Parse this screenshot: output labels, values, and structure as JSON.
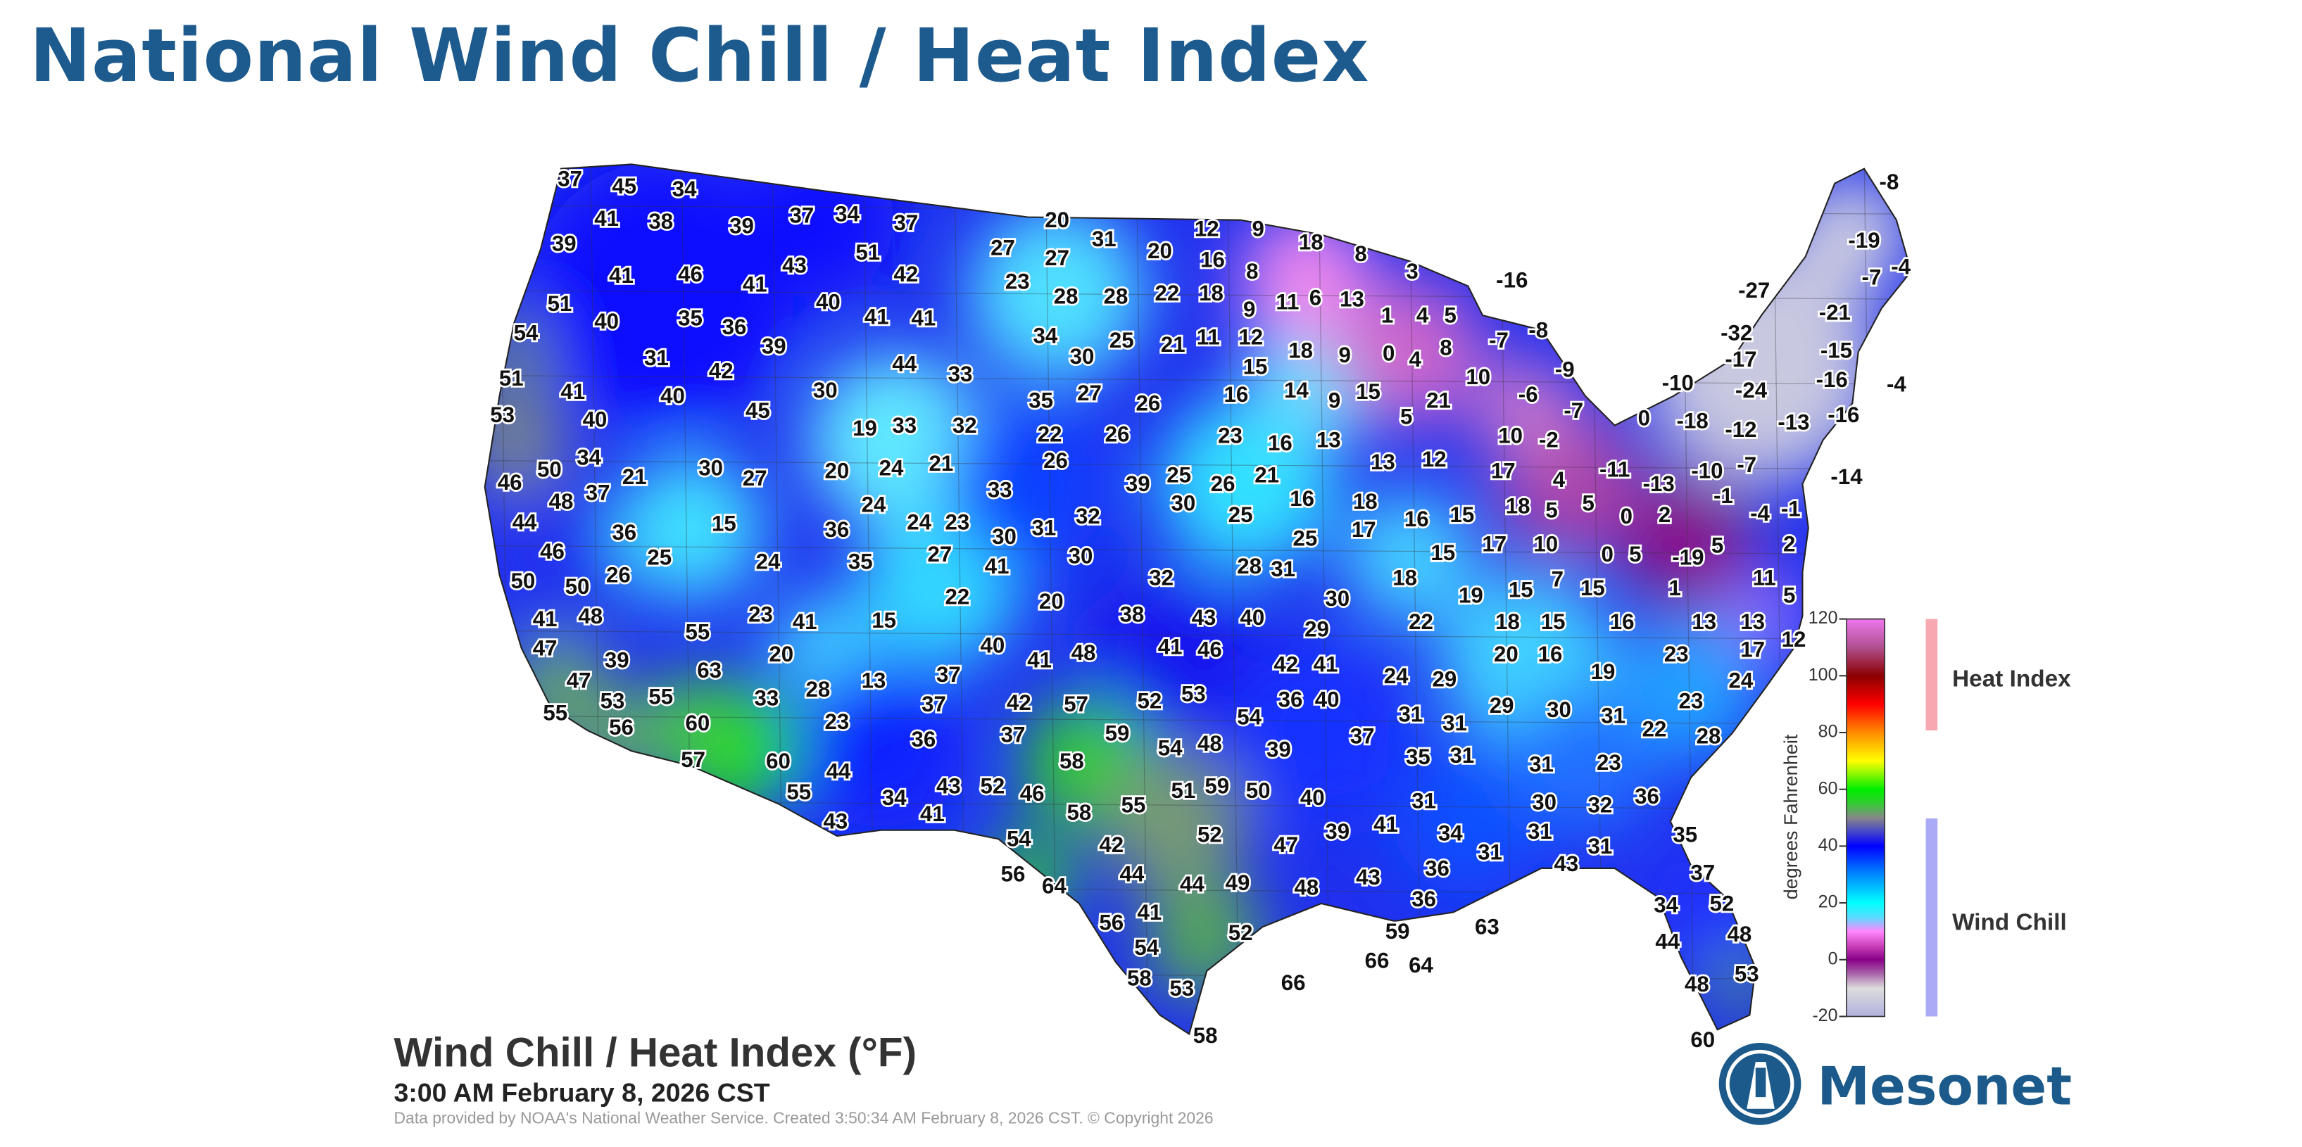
{
  "title": "National Wind Chill / Heat Index",
  "map": {
    "product_title": "Wind Chill / Heat Index (°F)",
    "valid_time": "3:00 AM February 8, 2026 CST",
    "credit": "Data provided by NOAA's National Weather Service. Created 3:50:34 AM February 8, 2026 CST. © Copyright 2026",
    "station_values": [
      37,
      45,
      34,
      41,
      38,
      39,
      37,
      34,
      37,
      27,
      20,
      31,
      20,
      12,
      9,
      18,
      8,
      39,
      41,
      46,
      41,
      43,
      51,
      42,
      23,
      27,
      16,
      8,
      3,
      -16,
      51,
      40,
      35,
      36,
      39,
      40,
      41,
      41,
      28,
      28,
      22,
      18,
      9,
      11,
      6,
      13,
      1,
      4,
      5,
      -8,
      -19,
      -7,
      -4,
      -27,
      -21,
      54,
      31,
      42,
      34,
      30,
      25,
      21,
      11,
      12,
      18,
      9,
      0,
      4,
      8,
      -7,
      -8,
      -32,
      -17,
      -15,
      51,
      41,
      40,
      45,
      30,
      44,
      33,
      35,
      27,
      26,
      15,
      16,
      14,
      9,
      15,
      21,
      10,
      -6,
      -9,
      -7,
      -10,
      -24,
      -16,
      -4,
      53,
      40,
      19,
      33,
      32,
      22,
      26,
      23,
      16,
      13,
      5,
      10,
      -2,
      0,
      -18,
      -12,
      -13,
      -16,
      34,
      50,
      21,
      30,
      27,
      20,
      24,
      21,
      26,
      39,
      25,
      26,
      21,
      13,
      12,
      17,
      -11,
      -13,
      -10,
      -7,
      -14,
      46,
      48,
      37,
      33,
      24,
      30,
      16,
      18,
      4,
      5,
      0,
      2,
      -1,
      -4,
      -1,
      44,
      36,
      15,
      36,
      24,
      23,
      30,
      31,
      32,
      25,
      17,
      16,
      15,
      18,
      5,
      46,
      25,
      24,
      35,
      27,
      41,
      30,
      28,
      31,
      25,
      15,
      17,
      10,
      0,
      5,
      -19,
      5,
      2,
      50,
      50,
      26,
      32,
      18,
      19,
      15,
      7,
      15,
      1,
      11,
      5,
      41,
      48,
      23,
      41,
      15,
      22,
      20,
      38,
      43,
      40,
      30,
      22,
      18,
      15,
      16,
      13,
      13,
      12,
      47,
      55,
      39,
      20,
      40,
      41,
      48,
      41,
      46,
      29,
      42,
      41,
      20,
      16,
      23,
      17,
      47,
      63,
      13,
      37,
      28,
      24,
      29,
      19,
      24,
      55,
      53,
      55,
      33,
      23,
      37,
      42,
      57,
      52,
      53,
      36,
      40,
      54,
      31,
      31,
      29,
      30,
      31,
      22,
      23,
      28,
      56,
      60,
      36,
      37,
      59,
      54,
      48,
      39,
      37,
      35,
      31,
      57,
      60,
      58,
      23,
      44,
      43,
      52,
      46,
      51,
      59,
      50,
      31,
      31,
      30,
      32,
      36,
      55,
      34,
      40,
      58,
      55,
      43,
      41,
      39,
      41,
      34,
      31,
      31,
      54,
      52,
      42,
      47,
      31,
      43,
      35,
      56,
      64,
      44,
      44,
      49,
      48,
      43,
      36,
      37,
      36,
      63,
      34,
      52,
      56,
      41,
      52,
      59,
      54,
      44,
      48,
      66,
      64,
      58,
      53,
      66,
      48,
      53,
      58,
      60
    ]
  },
  "legend": {
    "axis_label": "degrees Fahrenheit",
    "ticks": [
      "120",
      "100",
      "80",
      "60",
      "40",
      "20",
      "0",
      "-20"
    ],
    "heat_index_label": "Heat Index",
    "wind_chill_label": "Wind Chill",
    "heat_index_bar_color": "#f7a8b0",
    "wind_chill_bar_color": "#aaaaf7"
  },
  "logo": {
    "text": "Mesonet",
    "color": "#1b5a8a"
  }
}
